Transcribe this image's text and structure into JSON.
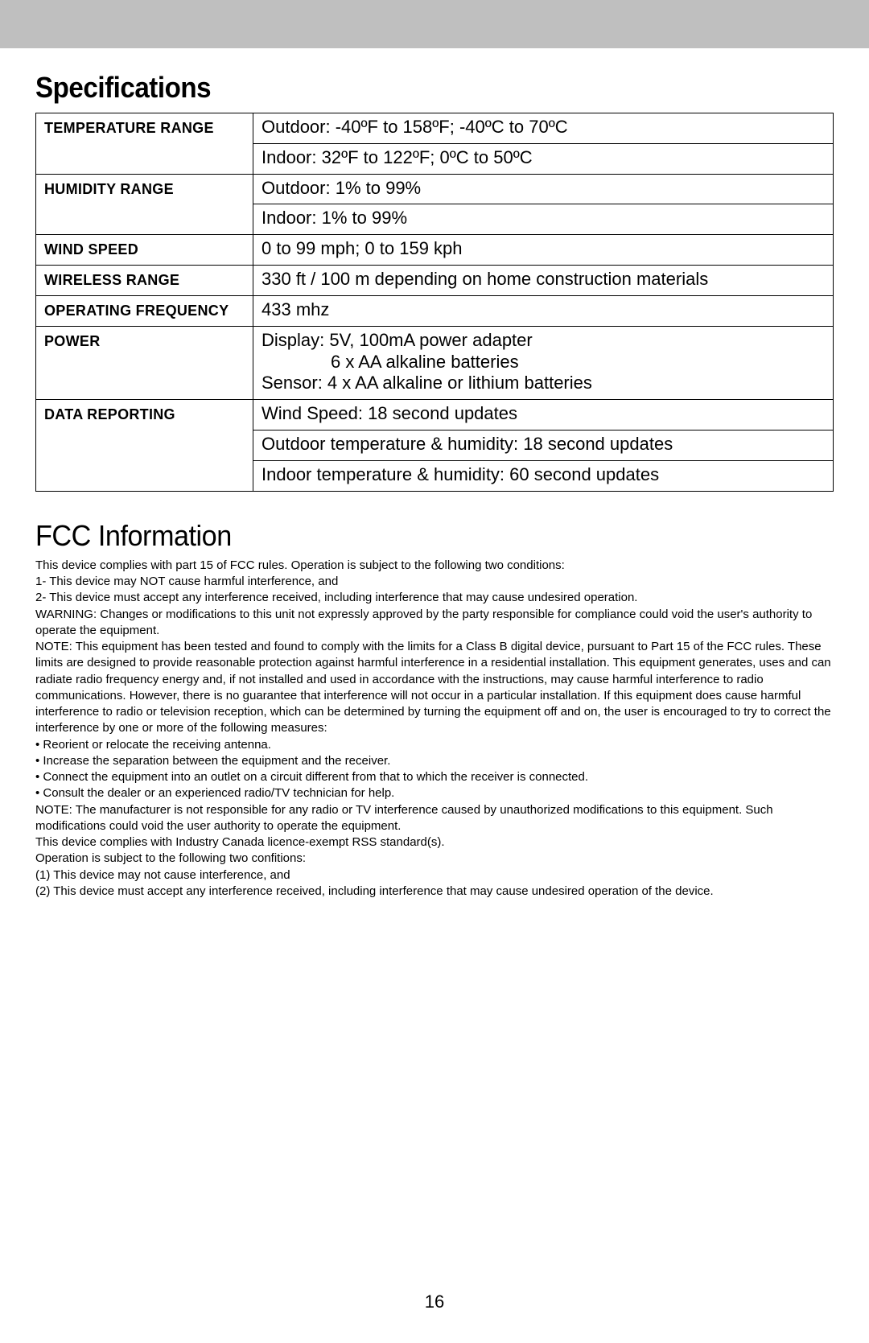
{
  "headings": {
    "specifications": "Specifications",
    "fcc": "FCC Information"
  },
  "spec_table": {
    "rows": [
      {
        "label": "TEMPERATURE RANGE",
        "value": "Outdoor: -40ºF to 158ºF; -40ºC to 70ºC"
      },
      {
        "label": "",
        "value": "Indoor: 32ºF to 122ºF; 0ºC to 50ºC"
      },
      {
        "label": "HUMIDITY RANGE",
        "value": "Outdoor: 1% to 99%"
      },
      {
        "label": "",
        "value": "Indoor: 1% to 99%"
      },
      {
        "label": "WIND SPEED",
        "value": "0 to 99 mph; 0 to 159 kph"
      },
      {
        "label": "WIRELESS RANGE",
        "value": "330 ft / 100 m depending on home construction materials"
      },
      {
        "label": "OPERATING FREQUENCY",
        "value": "433 mhz"
      },
      {
        "label": "POWER",
        "value_lines": [
          "Display: 5V, 100mA power adapter",
          "6 x AA alkaline batteries",
          "Sensor: 4 x AA alkaline or lithium batteries"
        ],
        "indent_idx": 1
      },
      {
        "label": "DATA REPORTING",
        "value": "Wind Speed: 18 second updates"
      },
      {
        "label": "",
        "value": "Outdoor temperature & humidity: 18 second updates"
      },
      {
        "label": "",
        "value": "Indoor temperature & humidity: 60 second updates"
      }
    ],
    "row_spans": {
      "0": 2,
      "2": 2,
      "8": 3
    }
  },
  "fcc": {
    "paragraphs": [
      "This device complies with part 15 of FCC rules. Operation is subject to the following two conditions:",
      "1- This device may NOT cause harmful interference, and",
      "2- This device must accept any interference received, including interference that may cause undesired operation.",
      "WARNING: Changes or modifications to this unit not expressly approved by the party responsible for compliance could void the user's authority to operate the equipment.",
      "NOTE: This equipment has been tested and found to comply with the limits for a Class B digital device, pursuant to Part 15 of the FCC rules. These limits are designed to provide reasonable protection against harmful interference in a residential installation. This equipment generates, uses and can radiate radio frequency energy and, if not installed and used in accordance with the instructions, may cause harmful interference to radio communications. However, there is no guarantee that interference will not occur in a particular installation. If this equipment does cause harmful interference to radio or television reception, which can be determined by turning the equipment off and on, the user is encouraged to try to correct the interference by one or more of the following measures:",
      "• Reorient or relocate the receiving antenna.",
      "• Increase the separation between the equipment and the receiver.",
      "• Connect the equipment into an outlet on a circuit different from that to which the receiver is connected.",
      "• Consult the dealer or an experienced radio/TV technician for help.",
      "NOTE: The manufacturer is not responsible for any radio or TV interference caused by unauthorized modifications to this equipment. Such modifications could void the user authority to operate the equipment.",
      "This device complies with Industry Canada licence-exempt RSS standard(s).",
      "Operation is subject to the following two confitions:",
      "(1) This device may not cause interference, and",
      "(2) This device must accept any interference received, including interference that may cause undesired operation of the device."
    ]
  },
  "page_number": "16"
}
